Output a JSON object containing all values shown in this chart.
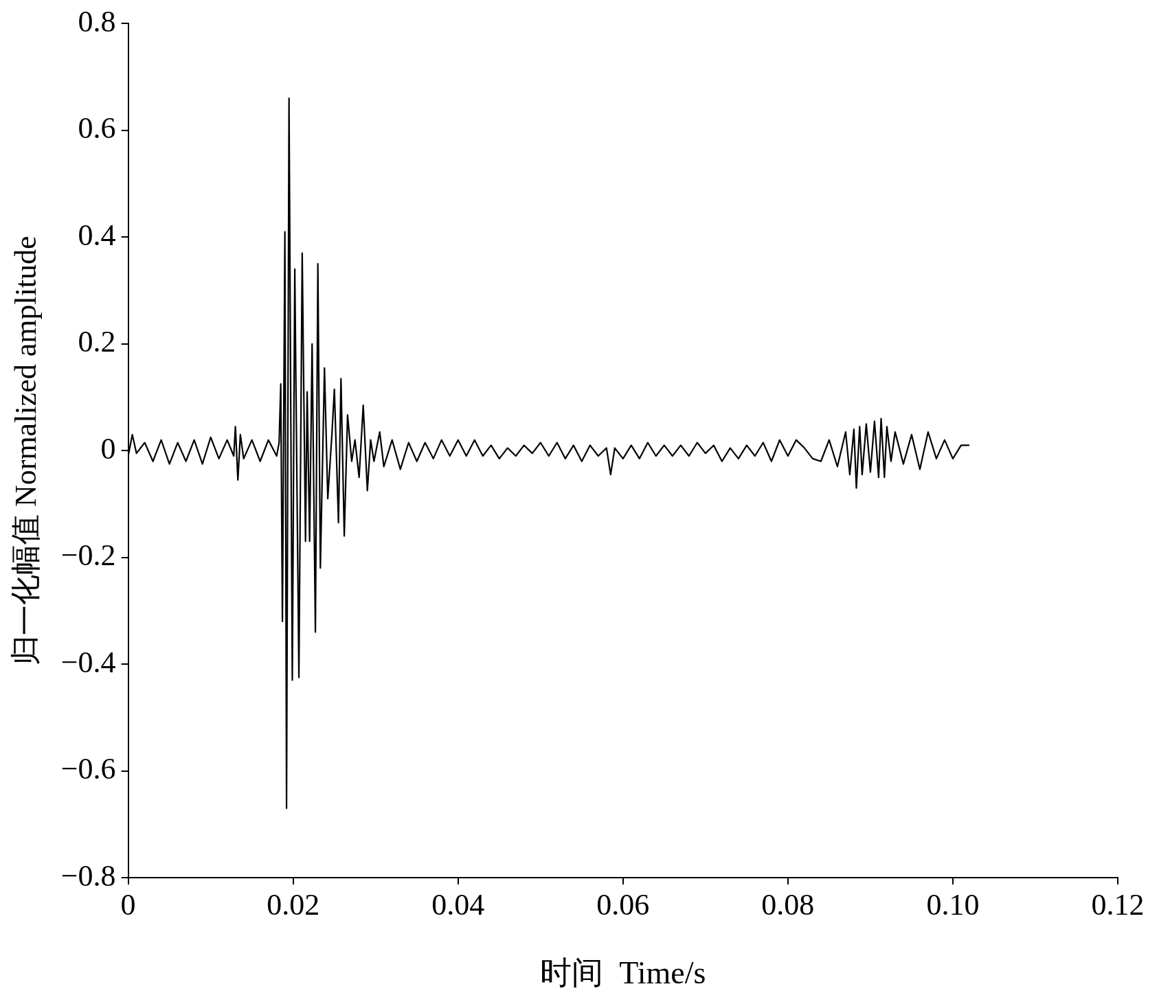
{
  "chart_data": {
    "type": "line",
    "xlabel": "时间  Time/s",
    "ylabel": "归一化幅值 Normalized amplitude",
    "grid": false,
    "legend": false,
    "xlim": [
      0,
      0.12
    ],
    "ylim": [
      -0.8,
      0.8
    ],
    "xticks": [
      0,
      0.02,
      0.04,
      0.06,
      0.08,
      {
        "value": 0.1,
        "label": "0.10"
      },
      0.12
    ],
    "yticks": [
      {
        "value": -0.8,
        "label": "−0.8"
      },
      {
        "value": -0.6,
        "label": "−0.6"
      },
      {
        "value": -0.4,
        "label": "−0.4"
      },
      {
        "value": -0.2,
        "label": "−0.2"
      },
      0,
      0.2,
      0.4,
      0.6,
      0.8
    ],
    "series": [
      {
        "color": "#000000",
        "x": [
          0,
          0.0005,
          0.001,
          0.002,
          0.003,
          0.004,
          0.005,
          0.006,
          0.007,
          0.008,
          0.009,
          0.01,
          0.011,
          0.012,
          0.0128,
          0.013,
          0.0133,
          0.0136,
          0.014,
          0.015,
          0.016,
          0.017,
          0.018,
          0.0183,
          0.0185,
          0.0187,
          0.019,
          0.0192,
          0.0195,
          0.0199,
          0.0202,
          0.0207,
          0.0211,
          0.0215,
          0.0217,
          0.022,
          0.0223,
          0.0227,
          0.023,
          0.0233,
          0.0238,
          0.0242,
          0.0247,
          0.025,
          0.0255,
          0.0258,
          0.0262,
          0.0266,
          0.0271,
          0.0275,
          0.028,
          0.0285,
          0.029,
          0.0294,
          0.0298,
          0.0305,
          0.031,
          0.032,
          0.033,
          0.034,
          0.035,
          0.036,
          0.037,
          0.038,
          0.039,
          0.04,
          0.041,
          0.042,
          0.043,
          0.044,
          0.045,
          0.046,
          0.047,
          0.048,
          0.049,
          0.05,
          0.051,
          0.052,
          0.053,
          0.054,
          0.055,
          0.056,
          0.057,
          0.058,
          0.0585,
          0.059,
          0.06,
          0.061,
          0.062,
          0.063,
          0.064,
          0.065,
          0.066,
          0.067,
          0.068,
          0.069,
          0.07,
          0.071,
          0.072,
          0.073,
          0.074,
          0.075,
          0.076,
          0.077,
          0.078,
          0.079,
          0.08,
          0.081,
          0.082,
          0.083,
          0.084,
          0.085,
          0.086,
          0.087,
          0.0875,
          0.088,
          0.0883,
          0.0887,
          0.089,
          0.0895,
          0.09,
          0.0905,
          0.091,
          0.0913,
          0.0917,
          0.092,
          0.0925,
          0.093,
          0.094,
          0.095,
          0.096,
          0.097,
          0.098,
          0.099,
          0.1,
          0.101,
          0.102
        ],
        "values": [
          -0.01,
          0.03,
          -0.005,
          0.015,
          -0.02,
          0.02,
          -0.025,
          0.015,
          -0.02,
          0.02,
          -0.025,
          0.025,
          -0.015,
          0.02,
          -0.01,
          0.045,
          -0.055,
          0.03,
          -0.015,
          0.02,
          -0.02,
          0.02,
          -0.01,
          0.015,
          0.125,
          -0.32,
          0.41,
          -0.67,
          0.66,
          -0.43,
          0.34,
          -0.425,
          0.37,
          -0.17,
          0.11,
          -0.17,
          0.2,
          -0.34,
          0.35,
          -0.22,
          0.155,
          -0.09,
          0.03,
          0.115,
          -0.135,
          0.135,
          -0.16,
          0.067,
          -0.02,
          0.02,
          -0.05,
          0.085,
          -0.075,
          0.02,
          -0.02,
          0.035,
          -0.03,
          0.02,
          -0.035,
          0.015,
          -0.02,
          0.015,
          -0.015,
          0.02,
          -0.01,
          0.02,
          -0.01,
          0.02,
          -0.01,
          0.01,
          -0.015,
          0.005,
          -0.01,
          0.01,
          -0.005,
          0.015,
          -0.01,
          0.015,
          -0.015,
          0.01,
          -0.02,
          0.01,
          -0.01,
          0.005,
          -0.045,
          0.005,
          -0.015,
          0.01,
          -0.015,
          0.015,
          -0.01,
          0.01,
          -0.01,
          0.01,
          -0.01,
          0.015,
          -0.005,
          0.01,
          -0.02,
          0.005,
          -0.015,
          0.01,
          -0.01,
          0.015,
          -0.02,
          0.02,
          -0.01,
          0.02,
          0.005,
          -0.015,
          -0.02,
          0.02,
          -0.03,
          0.035,
          -0.045,
          0.04,
          -0.07,
          0.045,
          -0.045,
          0.05,
          -0.04,
          0.055,
          -0.05,
          0.06,
          -0.05,
          0.045,
          -0.02,
          0.035,
          -0.025,
          0.03,
          -0.035,
          0.035,
          -0.015,
          0.02,
          -0.015,
          0.01,
          0.01
        ]
      }
    ]
  }
}
